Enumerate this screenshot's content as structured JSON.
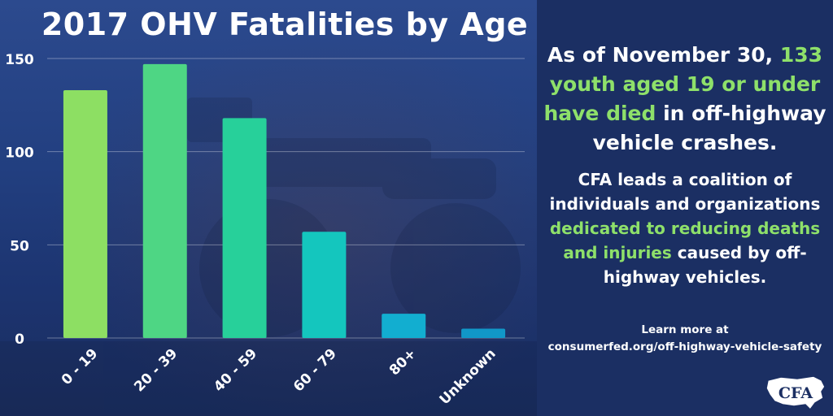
{
  "chart_data": {
    "type": "bar",
    "title": "2017 OHV Fatalities by Age",
    "categories": [
      "0 - 19",
      "20 - 39",
      "40 - 59",
      "60 - 79",
      "80+",
      "Unknown"
    ],
    "values": [
      133,
      147,
      118,
      57,
      13,
      5
    ],
    "ylim": [
      0,
      150
    ],
    "yticks": [
      0,
      50,
      100,
      150
    ],
    "grid": true,
    "colors": [
      "#8ddf63",
      "#4ed684",
      "#27d09a",
      "#14c6be",
      "#12aed0",
      "#1197c8"
    ]
  },
  "info": {
    "headline": {
      "part1": "As of November 30, ",
      "highlight": "133 youth aged 19 or under have died",
      "part2": " in off-highway vehicle crashes."
    },
    "body": {
      "part1": "CFA leads a coalition of individuals and organizations ",
      "highlight": "dedicated to reducing deaths and injuries",
      "part2": " caused by off-highway vehicles."
    },
    "learn_more": {
      "line1": "Learn more at",
      "line2": "consumerfed.org/off-highway-vehicle-safety"
    },
    "logo_text": "CFA"
  }
}
